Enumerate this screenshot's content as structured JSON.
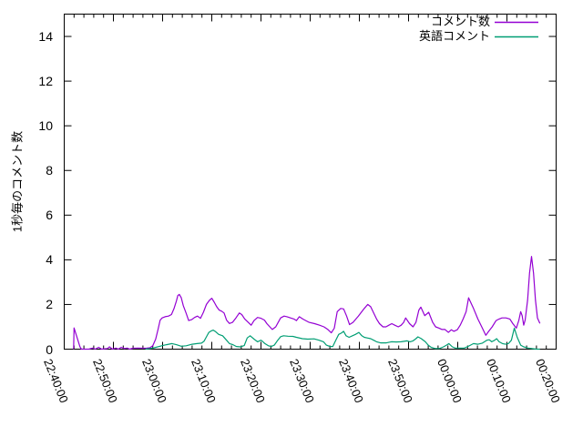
{
  "chart_data": {
    "type": "line",
    "title": "",
    "xlabel": "",
    "ylabel": "1秒毎のコメント数",
    "background_color": "#ffffff",
    "axis_color": "#000000",
    "grid": false,
    "legend_position": "top-right-inside",
    "x_axis": {
      "kind": "time",
      "range_minutes": [
        0,
        100
      ],
      "major_tick_step_minutes": 10,
      "minor_tick_step_minutes": 2,
      "tick_labels": [
        "22:40:00",
        "22:50:00",
        "23:00:00",
        "23:10:00",
        "23:20:00",
        "23:30:00",
        "23:40:00",
        "23:50:00",
        "00:00:00",
        "00:10:00",
        "00:20:00"
      ],
      "tick_minutes": [
        0,
        10,
        20,
        30,
        40,
        50,
        60,
        70,
        80,
        90,
        100
      ]
    },
    "y_axis": {
      "range": [
        0,
        15
      ],
      "ticks": [
        0,
        2,
        4,
        6,
        8,
        10,
        12,
        14
      ]
    },
    "series": [
      {
        "name": "コメント数",
        "color": "#9400d3",
        "points_min_after_2240_vs_value": [
          [
            1.9,
            0.0
          ],
          [
            2.0,
            0.95
          ],
          [
            2.5,
            0.6
          ],
          [
            3.2,
            0.1
          ],
          [
            3.5,
            0.0
          ],
          [
            5.0,
            0.0
          ],
          [
            5.8,
            0.05
          ],
          [
            6.3,
            0.0
          ],
          [
            7.0,
            0.08
          ],
          [
            7.6,
            0.0
          ],
          [
            8.8,
            0.03
          ],
          [
            9.2,
            0.1
          ],
          [
            9.8,
            0.0
          ],
          [
            10.5,
            0.05
          ],
          [
            11.0,
            0.0
          ],
          [
            11.6,
            0.08
          ],
          [
            12.2,
            0.03
          ],
          [
            12.8,
            0.05
          ],
          [
            13.3,
            0.0
          ],
          [
            14.0,
            0.04
          ],
          [
            15.0,
            0.05
          ],
          [
            16.0,
            0.04
          ],
          [
            16.8,
            0.05
          ],
          [
            17.4,
            0.06
          ],
          [
            18.0,
            0.15
          ],
          [
            18.6,
            0.45
          ],
          [
            19.1,
            0.9
          ],
          [
            19.5,
            1.3
          ],
          [
            19.9,
            1.4
          ],
          [
            20.5,
            1.45
          ],
          [
            21.2,
            1.48
          ],
          [
            21.8,
            1.55
          ],
          [
            22.3,
            1.8
          ],
          [
            22.8,
            2.15
          ],
          [
            23.1,
            2.4
          ],
          [
            23.4,
            2.45
          ],
          [
            23.8,
            2.3
          ],
          [
            24.2,
            1.95
          ],
          [
            24.8,
            1.6
          ],
          [
            25.3,
            1.28
          ],
          [
            25.9,
            1.32
          ],
          [
            26.5,
            1.42
          ],
          [
            27.1,
            1.48
          ],
          [
            27.7,
            1.38
          ],
          [
            28.3,
            1.65
          ],
          [
            28.9,
            2.0
          ],
          [
            29.5,
            2.18
          ],
          [
            30.0,
            2.28
          ],
          [
            30.5,
            2.1
          ],
          [
            31.0,
            1.9
          ],
          [
            31.5,
            1.75
          ],
          [
            32.0,
            1.7
          ],
          [
            32.5,
            1.62
          ],
          [
            33.0,
            1.3
          ],
          [
            33.6,
            1.15
          ],
          [
            34.2,
            1.2
          ],
          [
            34.9,
            1.4
          ],
          [
            35.6,
            1.62
          ],
          [
            36.1,
            1.55
          ],
          [
            36.7,
            1.35
          ],
          [
            37.4,
            1.2
          ],
          [
            38.0,
            1.07
          ],
          [
            38.6,
            1.28
          ],
          [
            39.3,
            1.42
          ],
          [
            40.0,
            1.38
          ],
          [
            40.7,
            1.3
          ],
          [
            41.2,
            1.14
          ],
          [
            41.8,
            1.0
          ],
          [
            42.3,
            0.88
          ],
          [
            43.0,
            1.0
          ],
          [
            43.5,
            1.2
          ],
          [
            44.0,
            1.4
          ],
          [
            44.7,
            1.48
          ],
          [
            45.3,
            1.45
          ],
          [
            46.0,
            1.4
          ],
          [
            46.7,
            1.35
          ],
          [
            47.2,
            1.28
          ],
          [
            47.8,
            1.45
          ],
          [
            48.5,
            1.35
          ],
          [
            49.1,
            1.28
          ],
          [
            49.8,
            1.2
          ],
          [
            50.9,
            1.14
          ],
          [
            51.9,
            1.07
          ],
          [
            52.8,
            1.0
          ],
          [
            53.6,
            0.88
          ],
          [
            54.3,
            0.73
          ],
          [
            54.9,
            0.94
          ],
          [
            55.5,
            1.68
          ],
          [
            56.2,
            1.82
          ],
          [
            56.8,
            1.8
          ],
          [
            57.4,
            1.48
          ],
          [
            58.0,
            1.1
          ],
          [
            58.7,
            1.2
          ],
          [
            59.3,
            1.35
          ],
          [
            59.8,
            1.48
          ],
          [
            60.5,
            1.68
          ],
          [
            61.0,
            1.82
          ],
          [
            61.7,
            2.0
          ],
          [
            62.3,
            1.9
          ],
          [
            62.9,
            1.62
          ],
          [
            63.5,
            1.35
          ],
          [
            64.1,
            1.14
          ],
          [
            64.8,
            1.0
          ],
          [
            65.4,
            1.0
          ],
          [
            66.0,
            1.07
          ],
          [
            66.6,
            1.14
          ],
          [
            67.2,
            1.07
          ],
          [
            67.9,
            1.0
          ],
          [
            68.5,
            1.07
          ],
          [
            69.0,
            1.2
          ],
          [
            69.4,
            1.4
          ],
          [
            70.2,
            1.14
          ],
          [
            70.9,
            1.0
          ],
          [
            71.5,
            1.2
          ],
          [
            72.1,
            1.75
          ],
          [
            72.5,
            1.88
          ],
          [
            73.3,
            1.5
          ],
          [
            74.1,
            1.65
          ],
          [
            74.9,
            1.2
          ],
          [
            75.5,
            1.0
          ],
          [
            76.2,
            0.94
          ],
          [
            76.8,
            0.88
          ],
          [
            77.4,
            0.88
          ],
          [
            78.1,
            0.75
          ],
          [
            78.7,
            0.87
          ],
          [
            79.2,
            0.8
          ],
          [
            79.9,
            0.87
          ],
          [
            80.5,
            1.07
          ],
          [
            81.1,
            1.35
          ],
          [
            81.7,
            1.68
          ],
          [
            82.2,
            2.3
          ],
          [
            83.2,
            1.82
          ],
          [
            84.1,
            1.35
          ],
          [
            85.0,
            0.94
          ],
          [
            85.7,
            0.62
          ],
          [
            86.3,
            0.8
          ],
          [
            87.0,
            1.0
          ],
          [
            87.8,
            1.28
          ],
          [
            88.4,
            1.35
          ],
          [
            89.0,
            1.4
          ],
          [
            89.8,
            1.4
          ],
          [
            90.6,
            1.35
          ],
          [
            91.2,
            1.14
          ],
          [
            91.9,
            0.94
          ],
          [
            92.4,
            1.28
          ],
          [
            92.8,
            1.68
          ],
          [
            93.1,
            1.5
          ],
          [
            93.4,
            1.07
          ],
          [
            93.7,
            1.3
          ],
          [
            94.2,
            2.2
          ],
          [
            94.6,
            3.4
          ],
          [
            95.0,
            4.15
          ],
          [
            95.4,
            3.4
          ],
          [
            95.8,
            2.2
          ],
          [
            96.2,
            1.4
          ],
          [
            96.7,
            1.15
          ]
        ]
      },
      {
        "name": "英語コメント",
        "color": "#009e73",
        "points_min_after_2240_vs_value": [
          [
            16.5,
            0.0
          ],
          [
            17.3,
            0.02
          ],
          [
            18.3,
            0.06
          ],
          [
            19.3,
            0.12
          ],
          [
            20.0,
            0.16
          ],
          [
            20.8,
            0.2
          ],
          [
            21.9,
            0.25
          ],
          [
            22.8,
            0.2
          ],
          [
            23.8,
            0.13
          ],
          [
            24.8,
            0.15
          ],
          [
            26.0,
            0.22
          ],
          [
            27.0,
            0.25
          ],
          [
            27.9,
            0.27
          ],
          [
            28.4,
            0.35
          ],
          [
            28.9,
            0.55
          ],
          [
            29.4,
            0.75
          ],
          [
            29.9,
            0.82
          ],
          [
            30.3,
            0.85
          ],
          [
            30.8,
            0.78
          ],
          [
            31.4,
            0.66
          ],
          [
            32.2,
            0.6
          ],
          [
            33.0,
            0.4
          ],
          [
            33.6,
            0.25
          ],
          [
            34.3,
            0.2
          ],
          [
            35.0,
            0.12
          ],
          [
            35.8,
            0.1
          ],
          [
            36.6,
            0.16
          ],
          [
            37.2,
            0.5
          ],
          [
            37.8,
            0.6
          ],
          [
            38.6,
            0.45
          ],
          [
            39.3,
            0.33
          ],
          [
            40.0,
            0.4
          ],
          [
            40.3,
            0.35
          ],
          [
            40.8,
            0.25
          ],
          [
            41.5,
            0.15
          ],
          [
            42.1,
            0.12
          ],
          [
            42.7,
            0.18
          ],
          [
            43.4,
            0.4
          ],
          [
            44.0,
            0.56
          ],
          [
            44.6,
            0.6
          ],
          [
            45.5,
            0.58
          ],
          [
            46.5,
            0.57
          ],
          [
            47.2,
            0.53
          ],
          [
            48.4,
            0.47
          ],
          [
            49.5,
            0.45
          ],
          [
            50.8,
            0.46
          ],
          [
            51.8,
            0.4
          ],
          [
            52.7,
            0.33
          ],
          [
            53.3,
            0.18
          ],
          [
            54.0,
            0.12
          ],
          [
            54.6,
            0.12
          ],
          [
            55.2,
            0.4
          ],
          [
            55.8,
            0.66
          ],
          [
            56.4,
            0.73
          ],
          [
            56.8,
            0.8
          ],
          [
            57.3,
            0.6
          ],
          [
            57.9,
            0.53
          ],
          [
            58.6,
            0.6
          ],
          [
            59.2,
            0.66
          ],
          [
            59.9,
            0.75
          ],
          [
            60.5,
            0.6
          ],
          [
            61.0,
            0.53
          ],
          [
            61.6,
            0.5
          ],
          [
            62.3,
            0.47
          ],
          [
            62.9,
            0.4
          ],
          [
            63.5,
            0.33
          ],
          [
            64.3,
            0.28
          ],
          [
            65.5,
            0.28
          ],
          [
            66.5,
            0.33
          ],
          [
            67.5,
            0.32
          ],
          [
            68.5,
            0.33
          ],
          [
            69.7,
            0.37
          ],
          [
            70.3,
            0.33
          ],
          [
            70.9,
            0.37
          ],
          [
            71.5,
            0.47
          ],
          [
            71.9,
            0.55
          ],
          [
            72.6,
            0.47
          ],
          [
            73.4,
            0.33
          ],
          [
            74.0,
            0.18
          ],
          [
            74.6,
            0.08
          ],
          [
            75.4,
            0.03
          ],
          [
            76.3,
            0.03
          ],
          [
            77.1,
            0.1
          ],
          [
            77.7,
            0.18
          ],
          [
            78.2,
            0.25
          ],
          [
            78.9,
            0.1
          ],
          [
            79.5,
            0.05
          ],
          [
            80.5,
            0.05
          ],
          [
            81.3,
            0.05
          ],
          [
            81.9,
            0.1
          ],
          [
            82.6,
            0.18
          ],
          [
            83.2,
            0.25
          ],
          [
            84.1,
            0.22
          ],
          [
            85.0,
            0.27
          ],
          [
            85.9,
            0.4
          ],
          [
            86.4,
            0.42
          ],
          [
            86.9,
            0.33
          ],
          [
            87.5,
            0.4
          ],
          [
            87.9,
            0.47
          ],
          [
            88.4,
            0.33
          ],
          [
            89.1,
            0.25
          ],
          [
            89.7,
            0.22
          ],
          [
            90.3,
            0.25
          ],
          [
            90.9,
            0.4
          ],
          [
            91.5,
            0.94
          ],
          [
            92.1,
            0.53
          ],
          [
            92.8,
            0.18
          ],
          [
            93.4,
            0.1
          ],
          [
            94.3,
            0.05
          ],
          [
            95.2,
            0.02
          ],
          [
            96.0,
            0.0
          ],
          [
            96.7,
            0.0
          ]
        ]
      }
    ]
  }
}
